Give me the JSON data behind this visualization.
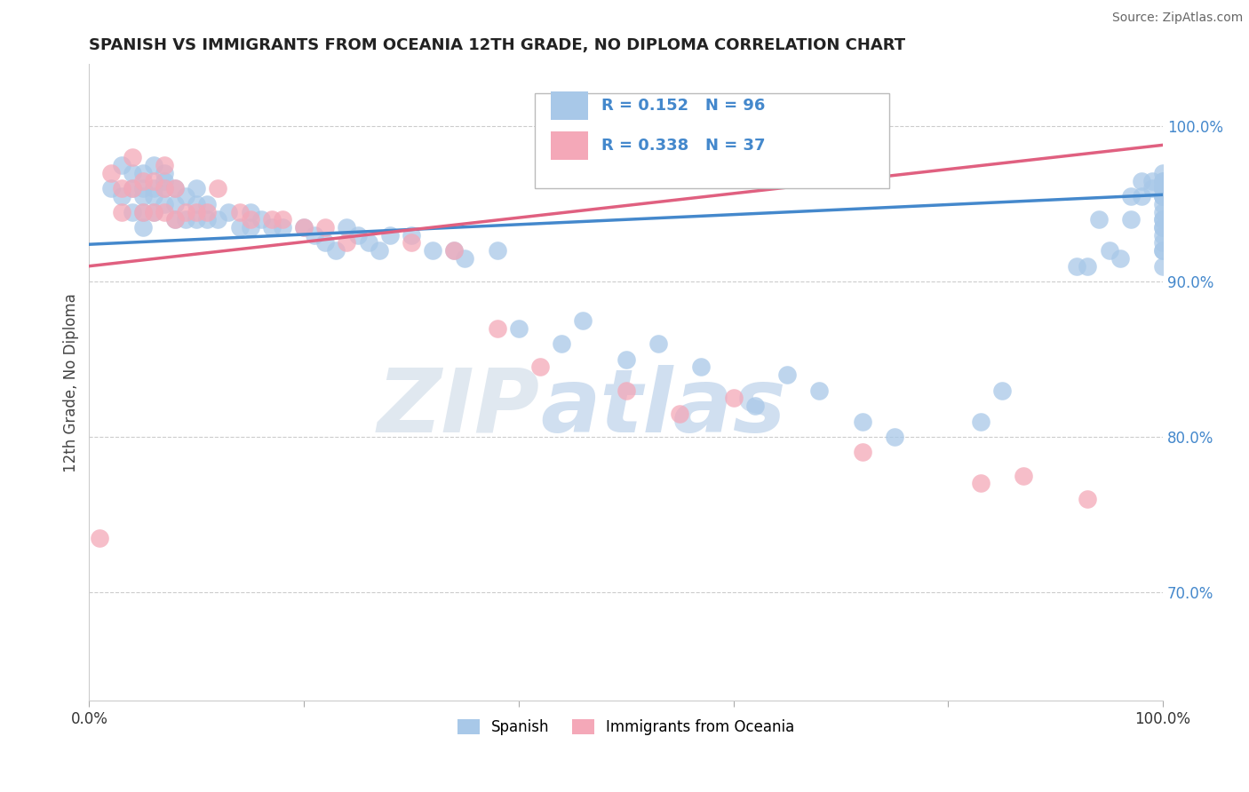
{
  "title": "SPANISH VS IMMIGRANTS FROM OCEANIA 12TH GRADE, NO DIPLOMA CORRELATION CHART",
  "source": "Source: ZipAtlas.com",
  "ylabel": "12th Grade, No Diploma",
  "xlim": [
    0.0,
    1.0
  ],
  "ylim": [
    0.63,
    1.04
  ],
  "xticks": [
    0.0,
    0.2,
    0.4,
    0.6,
    0.8,
    1.0
  ],
  "xticklabels": [
    "0.0%",
    "",
    "",
    "",
    "",
    "100.0%"
  ],
  "yticks": [
    0.7,
    0.8,
    0.9,
    1.0
  ],
  "yticklabels": [
    "70.0%",
    "80.0%",
    "90.0%",
    "100.0%"
  ],
  "blue_R": 0.152,
  "blue_N": 96,
  "pink_R": 0.338,
  "pink_N": 37,
  "blue_color": "#a8c8e8",
  "pink_color": "#f4a8b8",
  "blue_line_color": "#4488cc",
  "pink_line_color": "#e06080",
  "legend_label_blue": "Spanish",
  "legend_label_pink": "Immigrants from Oceania",
  "blue_scatter_x": [
    0.02,
    0.03,
    0.03,
    0.04,
    0.04,
    0.04,
    0.05,
    0.05,
    0.05,
    0.05,
    0.05,
    0.06,
    0.06,
    0.06,
    0.06,
    0.07,
    0.07,
    0.07,
    0.07,
    0.08,
    0.08,
    0.08,
    0.09,
    0.09,
    0.1,
    0.1,
    0.1,
    0.11,
    0.11,
    0.12,
    0.13,
    0.14,
    0.15,
    0.15,
    0.16,
    0.17,
    0.18,
    0.2,
    0.21,
    0.22,
    0.23,
    0.24,
    0.25,
    0.26,
    0.27,
    0.28,
    0.3,
    0.32,
    0.34,
    0.35,
    0.38,
    0.4,
    0.44,
    0.46,
    0.5,
    0.53,
    0.57,
    0.62,
    0.65,
    0.68,
    0.72,
    0.75,
    0.83,
    0.85,
    0.92,
    0.93,
    0.94,
    0.95,
    0.96,
    0.97,
    0.97,
    0.98,
    0.98,
    0.99,
    0.99,
    1.0,
    1.0,
    1.0,
    1.0,
    1.0,
    1.0,
    1.0,
    1.0,
    1.0,
    1.0,
    1.0,
    1.0,
    1.0,
    1.0,
    1.0,
    1.0,
    1.0,
    1.0,
    1.0,
    1.0,
    1.0
  ],
  "blue_scatter_y": [
    0.96,
    0.975,
    0.955,
    0.97,
    0.96,
    0.945,
    0.97,
    0.96,
    0.955,
    0.945,
    0.935,
    0.975,
    0.96,
    0.955,
    0.945,
    0.97,
    0.965,
    0.96,
    0.95,
    0.96,
    0.95,
    0.94,
    0.955,
    0.94,
    0.96,
    0.95,
    0.94,
    0.95,
    0.94,
    0.94,
    0.945,
    0.935,
    0.945,
    0.935,
    0.94,
    0.935,
    0.935,
    0.935,
    0.93,
    0.925,
    0.92,
    0.935,
    0.93,
    0.925,
    0.92,
    0.93,
    0.93,
    0.92,
    0.92,
    0.915,
    0.92,
    0.87,
    0.86,
    0.875,
    0.85,
    0.86,
    0.845,
    0.82,
    0.84,
    0.83,
    0.81,
    0.8,
    0.81,
    0.83,
    0.91,
    0.91,
    0.94,
    0.92,
    0.915,
    0.955,
    0.94,
    0.955,
    0.965,
    0.96,
    0.965,
    0.965,
    0.97,
    0.96,
    0.96,
    0.92,
    0.91,
    0.945,
    0.955,
    0.935,
    0.92,
    0.93,
    0.96,
    0.955,
    0.94,
    0.935,
    0.925,
    0.955,
    0.965,
    0.96,
    0.95,
    0.94
  ],
  "pink_scatter_x": [
    0.01,
    0.02,
    0.03,
    0.03,
    0.04,
    0.04,
    0.05,
    0.05,
    0.06,
    0.06,
    0.07,
    0.07,
    0.07,
    0.08,
    0.08,
    0.09,
    0.1,
    0.11,
    0.12,
    0.14,
    0.15,
    0.17,
    0.18,
    0.2,
    0.22,
    0.24,
    0.3,
    0.34,
    0.38,
    0.42,
    0.5,
    0.55,
    0.6,
    0.72,
    0.83,
    0.87,
    0.93
  ],
  "pink_scatter_y": [
    0.735,
    0.97,
    0.96,
    0.945,
    0.98,
    0.96,
    0.965,
    0.945,
    0.965,
    0.945,
    0.975,
    0.96,
    0.945,
    0.96,
    0.94,
    0.945,
    0.945,
    0.945,
    0.96,
    0.945,
    0.94,
    0.94,
    0.94,
    0.935,
    0.935,
    0.925,
    0.925,
    0.92,
    0.87,
    0.845,
    0.83,
    0.815,
    0.825,
    0.79,
    0.77,
    0.775,
    0.76
  ],
  "blue_line_x": [
    0.0,
    1.0
  ],
  "blue_line_y": [
    0.924,
    0.956
  ],
  "pink_line_x": [
    0.0,
    1.0
  ],
  "pink_line_y": [
    0.91,
    0.988
  ]
}
